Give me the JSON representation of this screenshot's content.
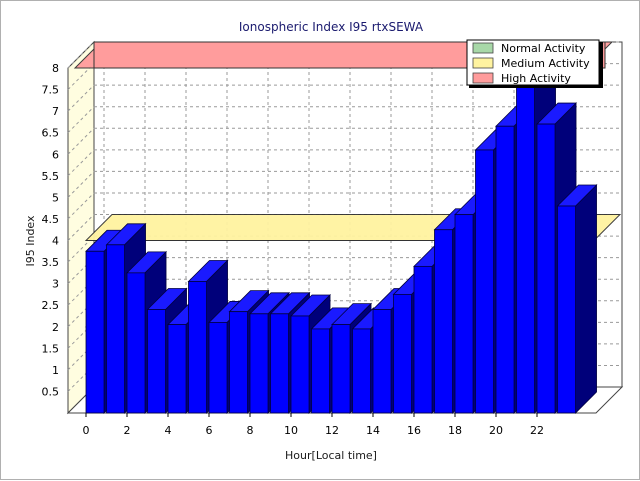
{
  "chart_data": {
    "type": "bar",
    "title": "Ionospheric Index I95 rtxSEWA",
    "xlabel": "Hour[Local time]",
    "ylabel": "I95 Index",
    "ylim": [
      0,
      8
    ],
    "yticks": [
      "0.5",
      "1",
      "1.5",
      "2",
      "2.5",
      "3",
      "3.5",
      "4",
      "4.5",
      "5",
      "5.5",
      "6",
      "6.5",
      "7",
      "7.5",
      "8"
    ],
    "xticks": [
      "0",
      "2",
      "4",
      "6",
      "8",
      "10",
      "12",
      "14",
      "16",
      "18",
      "20",
      "22"
    ],
    "grid": true,
    "legend_position": "top-right",
    "bands": [
      {
        "name": "Normal Activity",
        "from": 0,
        "to": 2,
        "color": "#a8d8a8"
      },
      {
        "name": "Medium Activity",
        "from": 2,
        "to": 4,
        "color": "#fff3a0"
      },
      {
        "name": "High Activity",
        "from": 4,
        "to": 8,
        "color": "#ff9c9c"
      }
    ],
    "x": [
      0,
      1,
      2,
      3,
      4,
      5,
      6,
      7,
      8,
      9,
      10,
      11,
      12,
      13,
      14,
      15,
      16,
      17,
      18,
      19,
      20,
      21,
      22,
      23
    ],
    "values": [
      3.75,
      3.9,
      3.25,
      2.4,
      2.05,
      3.05,
      2.1,
      2.35,
      2.3,
      2.3,
      2.25,
      1.95,
      2.05,
      1.95,
      2.4,
      2.75,
      3.4,
      4.25,
      4.6,
      6.1,
      6.65,
      7.6,
      6.7,
      4.8
    ],
    "bar_color": "#0000ff",
    "bar_top_color": "#1a1aff",
    "bar_side_color": "#00007a"
  }
}
